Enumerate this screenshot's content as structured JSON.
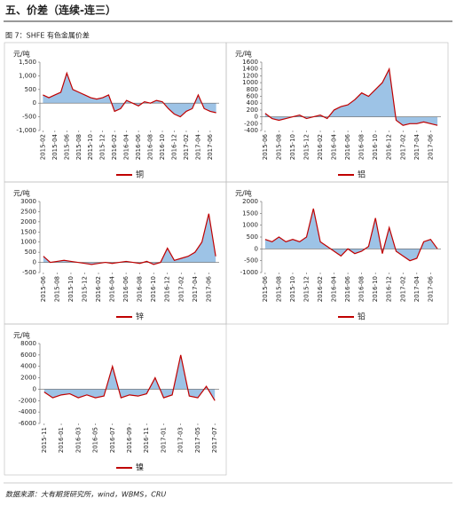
{
  "header": {
    "title": "五、价差（连续-连三）"
  },
  "caption": "图 7：SHFE 有色金属价差",
  "source": "数据来源：大有期货研究所，wind，WBMS，CRU",
  "chart_data": [
    {
      "type": "area",
      "y_unit": "元/吨",
      "fill_color": "#9dc3e6",
      "categories": [
        "2015-02",
        null,
        "2015-04",
        null,
        "2015-06",
        null,
        "2015-08",
        null,
        "2015-10",
        null,
        "2015-12",
        null,
        "2016-02",
        null,
        "2016-04",
        null,
        "2016-06",
        null,
        "2016-08",
        null,
        "2016-10",
        null,
        "2016-12",
        null,
        "2017-02",
        null,
        "2017-04",
        null,
        "2017-06",
        null
      ],
      "series": [
        {
          "name": "铜",
          "color": "#c00000",
          "values": [
            300,
            200,
            300,
            400,
            1100,
            500,
            400,
            300,
            200,
            150,
            200,
            300,
            -300,
            -200,
            100,
            0,
            -100,
            50,
            0,
            100,
            50,
            -200,
            -400,
            -500,
            -300,
            -200,
            300,
            -200,
            -300,
            -350
          ]
        }
      ],
      "ylim": [
        -1000,
        1500
      ],
      "yticks": [
        {
          "value": -1000,
          "label": "-1,000"
        },
        -500,
        0,
        500,
        {
          "value": 1000,
          "label": "1,000"
        },
        {
          "value": 1500,
          "label": "1,500"
        }
      ]
    },
    {
      "type": "area",
      "y_unit": "元/吨",
      "fill_color": "#9dc3e6",
      "categories": [
        "2015-06",
        null,
        "2015-08",
        null,
        "2015-10",
        null,
        "2015-12",
        null,
        "2016-02",
        null,
        "2016-04",
        null,
        "2016-06",
        null,
        "2016-08",
        null,
        "2016-10",
        null,
        "2016-12",
        null,
        "2017-02",
        null,
        "2017-04",
        null,
        "2017-06",
        null
      ],
      "series": [
        {
          "name": "铝",
          "color": "#c00000",
          "values": [
            100,
            -50,
            -100,
            -50,
            0,
            50,
            -50,
            0,
            50,
            -50,
            200,
            300,
            350,
            500,
            700,
            600,
            800,
            1000,
            1400,
            -100,
            -250,
            -200,
            -200,
            -150,
            -200,
            -250
          ]
        }
      ],
      "ylim": [
        -400,
        1600
      ],
      "yticks": [
        -400,
        -200,
        0,
        200,
        400,
        600,
        800,
        1000,
        1200,
        1400,
        1600
      ]
    },
    {
      "type": "area",
      "y_unit": "元/吨",
      "fill_color": "#9dc3e6",
      "categories": [
        "2015-06",
        null,
        "2015-08",
        null,
        "2015-10",
        null,
        "2015-12",
        null,
        "2016-02",
        null,
        "2016-04",
        null,
        "2016-06",
        null,
        "2016-08",
        null,
        "2016-10",
        null,
        "2016-12",
        null,
        "2017-02",
        null,
        "2017-04",
        null,
        "2017-06",
        null
      ],
      "series": [
        {
          "name": "锌",
          "color": "#c00000",
          "values": [
            300,
            0,
            50,
            100,
            50,
            0,
            -50,
            -100,
            -50,
            0,
            -50,
            0,
            50,
            0,
            -50,
            50,
            -100,
            0,
            700,
            100,
            200,
            300,
            500,
            1000,
            2400,
            300
          ]
        }
      ],
      "ylim": [
        -500,
        3000
      ],
      "yticks": [
        -500,
        0,
        500,
        1000,
        1500,
        2000,
        2500,
        3000
      ]
    },
    {
      "type": "area",
      "y_unit": "元/吨",
      "fill_color": "#9dc3e6",
      "categories": [
        "2015-06",
        null,
        "2015-08",
        null,
        "2015-10",
        null,
        "2015-12",
        null,
        "2016-02",
        null,
        "2016-04",
        null,
        "2016-06",
        null,
        "2016-08",
        null,
        "2016-10",
        null,
        "2016-12",
        null,
        "2017-02",
        null,
        "2017-04",
        null,
        "2017-06",
        null
      ],
      "series": [
        {
          "name": "铅",
          "color": "#c00000",
          "values": [
            400,
            300,
            500,
            300,
            400,
            300,
            500,
            1700,
            300,
            100,
            -100,
            -300,
            0,
            -200,
            -100,
            100,
            1300,
            -200,
            900,
            -100,
            -300,
            -500,
            -400,
            300,
            400,
            0
          ]
        }
      ],
      "ylim": [
        -1000,
        2000
      ],
      "yticks": [
        -1000,
        -500,
        0,
        500,
        1000,
        1500,
        2000
      ]
    },
    {
      "type": "area",
      "y_unit": "元/吨",
      "fill_color": "#9dc3e6",
      "categories": [
        "2015-11",
        null,
        "2016-01",
        null,
        "2016-03",
        null,
        "2016-05",
        null,
        "2016-07",
        null,
        "2016-09",
        null,
        "2016-11",
        null,
        "2017-01",
        null,
        "2017-03",
        null,
        "2017-05",
        null,
        "2017-07"
      ],
      "series": [
        {
          "name": "镍",
          "color": "#c00000",
          "values": [
            -500,
            -1500,
            -1000,
            -800,
            -1500,
            -1000,
            -1500,
            -1200,
            4000,
            -1500,
            -1000,
            -1200,
            -800,
            2000,
            -1500,
            -1000,
            6000,
            -1200,
            -1500,
            500,
            -2000
          ]
        }
      ],
      "ylim": [
        -6000,
        8000
      ],
      "yticks": [
        -6000,
        -4000,
        -2000,
        0,
        2000,
        4000,
        6000,
        8000
      ]
    }
  ]
}
